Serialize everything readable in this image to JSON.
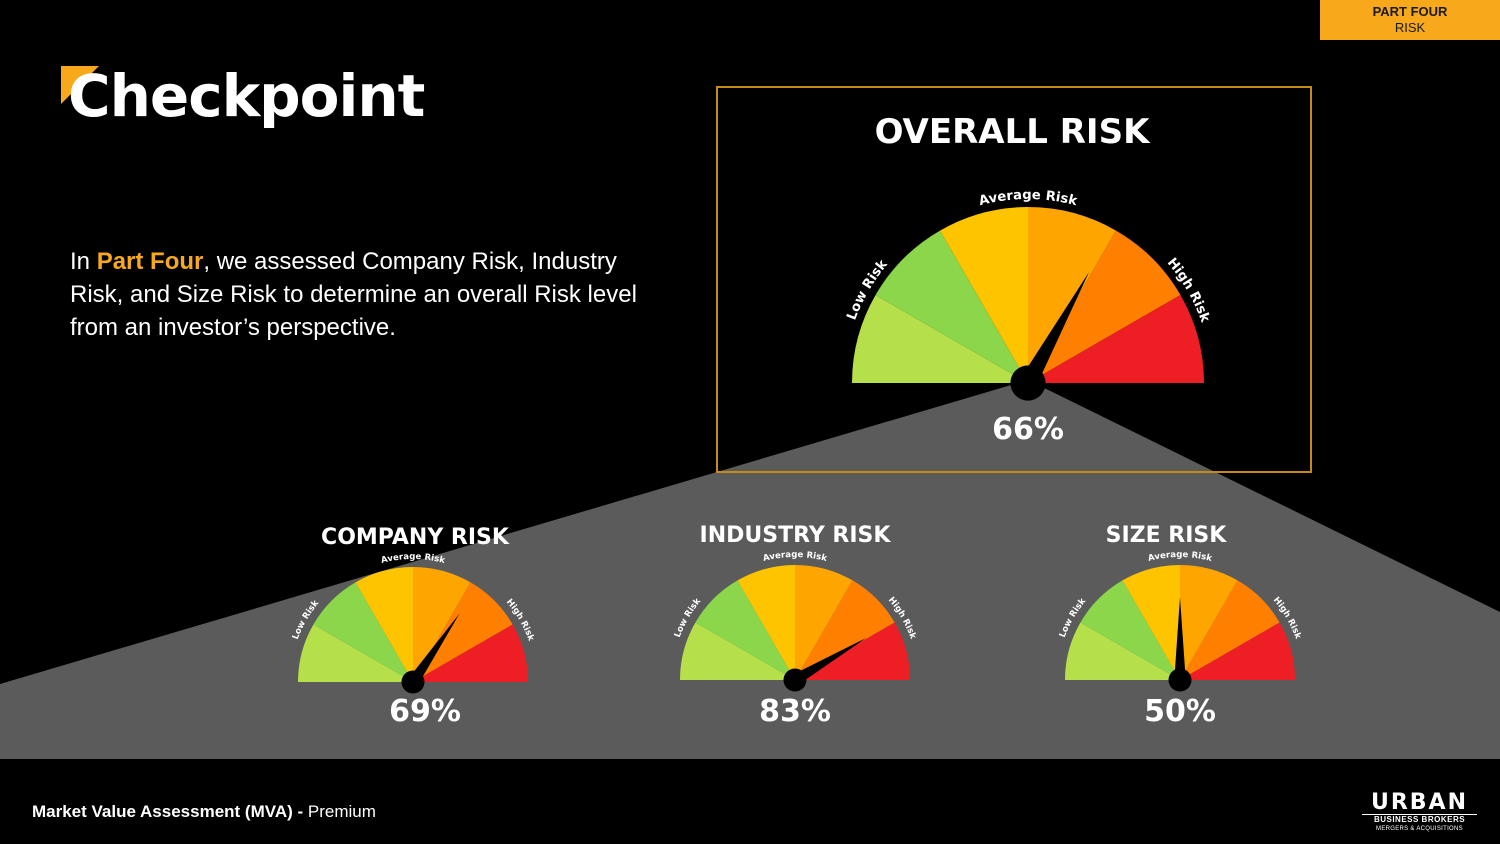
{
  "section_tag": {
    "line1": "PART FOUR",
    "line2": "RISK"
  },
  "page_title": "Checkpoint",
  "intro": {
    "prefix": "In ",
    "highlight": "Part Four",
    "suffix": ", we assessed Company Risk, Industry Risk, and Size Risk to determine an overall Risk level from an investor’s perspective."
  },
  "gauge_labels": {
    "low": "Low Risk",
    "average": "Average Risk",
    "high": "High Risk"
  },
  "colors": {
    "segments": [
      "#b5e04a",
      "#8bd64a",
      "#ffc400",
      "#ffa500",
      "#ff8000",
      "#ee1f24"
    ],
    "accent": "#f7a81b",
    "panel": "#5b5b5b"
  },
  "chart_data": [
    {
      "type": "gauge",
      "title": "OVERALL RISK",
      "value": 66,
      "value_label": "66%",
      "range": [
        0,
        100
      ]
    },
    {
      "type": "gauge",
      "title": "COMPANY RISK",
      "value": 69,
      "value_label": "69%",
      "range": [
        0,
        100
      ]
    },
    {
      "type": "gauge",
      "title": "INDUSTRY RISK",
      "value": 83,
      "value_label": "83%",
      "range": [
        0,
        100
      ]
    },
    {
      "type": "gauge",
      "title": "SIZE RISK",
      "value": 50,
      "value_label": "50%",
      "range": [
        0,
        100
      ]
    }
  ],
  "footer": {
    "label_bold": "Market Value Assessment (MVA) -",
    "label_normal": " Premium"
  },
  "logo": {
    "name": "URBAN",
    "line1": "BUSINESS BROKERS",
    "line2": "MERGERS & ACQUISITIONS"
  }
}
